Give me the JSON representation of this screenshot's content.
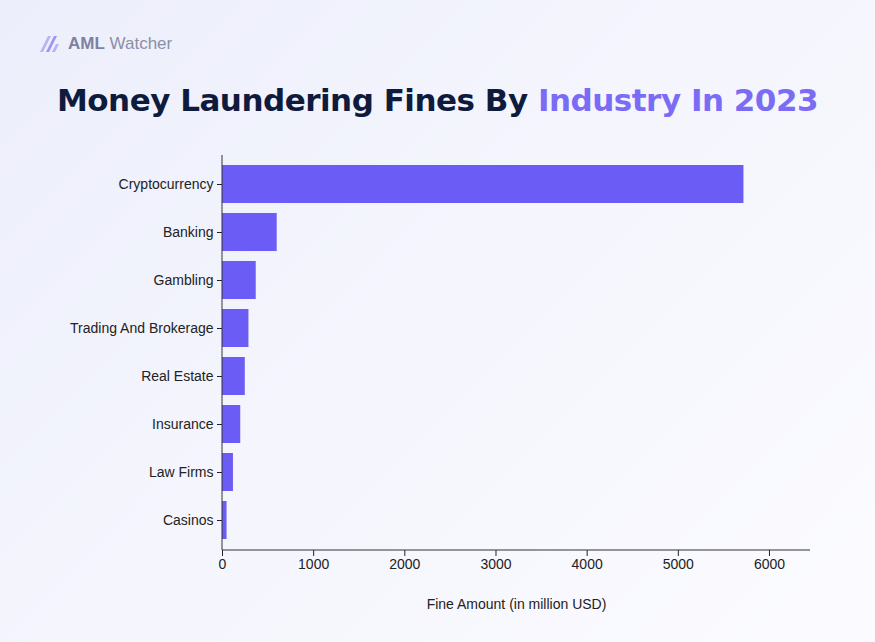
{
  "chart_data": {
    "type": "bar",
    "orientation": "horizontal",
    "title": "Money Laundering Fines By Industry In 2023",
    "annotations": [
      "AML Watcher"
    ],
    "categories": [
      "Cryptocurrency",
      "Banking",
      "Gambling",
      "Trading And Brokerage",
      "Real Estate",
      "Insurance",
      "Law Firms",
      "Casinos"
    ],
    "values": [
      5720,
      600,
      370,
      290,
      250,
      200,
      120,
      50
    ],
    "color": "#6b5cf6",
    "xlabel": "Fine Amount (in million USD)",
    "xlim": [
      0,
      6450
    ],
    "xticks": [
      0,
      1000,
      2000,
      3000,
      4000,
      5000,
      6000
    ],
    "grid": false
  }
}
